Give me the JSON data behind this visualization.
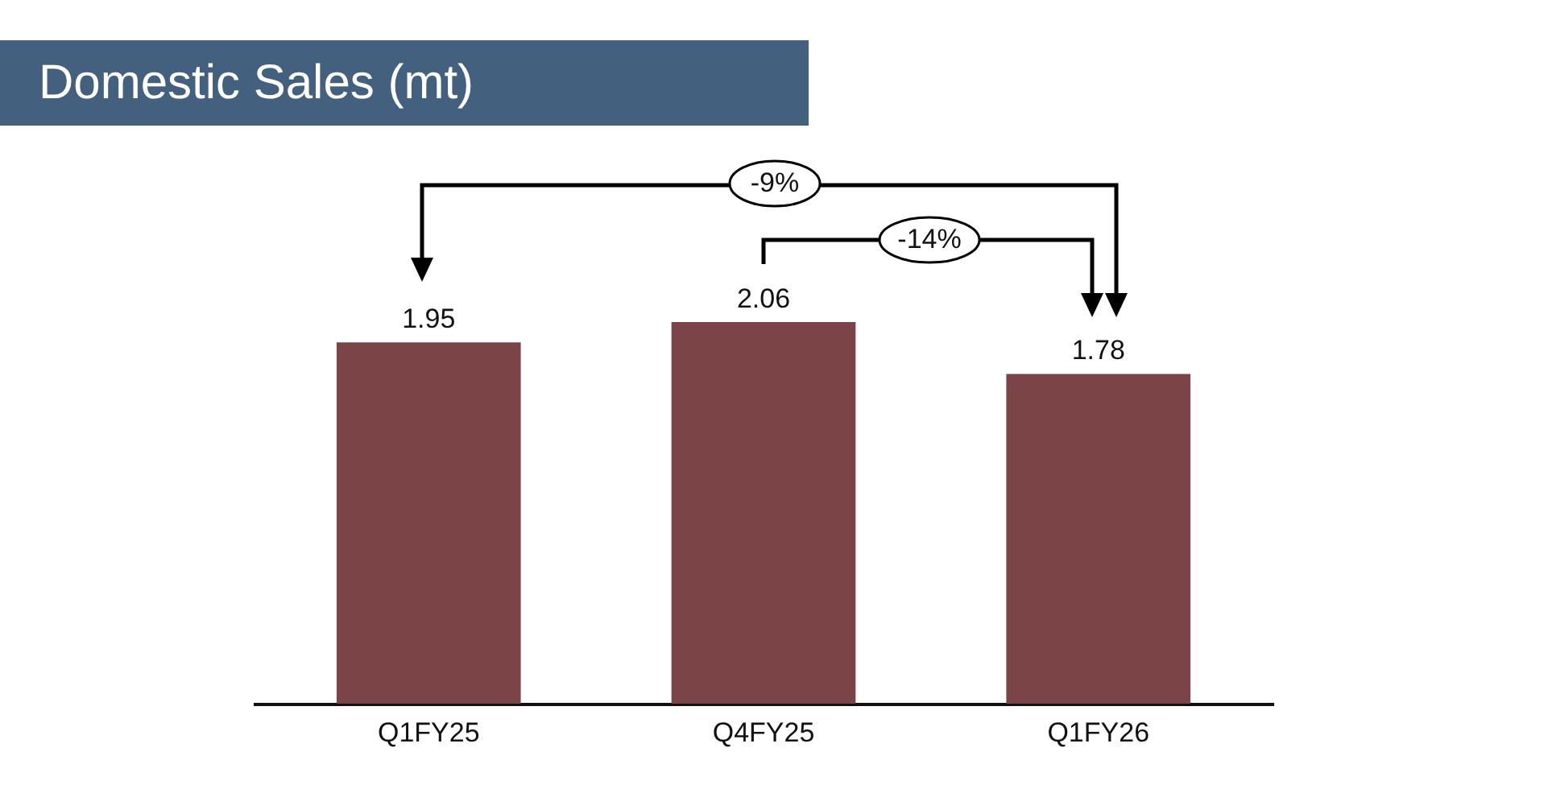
{
  "chart_data": {
    "type": "bar",
    "title": "Domestic Sales (mt)",
    "categories": [
      "Q1FY25",
      "Q4FY25",
      "Q1FY26"
    ],
    "values": [
      1.95,
      2.06,
      1.78
    ],
    "color": "#7b4548",
    "data_labels": true,
    "annotations": [
      "-9%",
      "-14%"
    ]
  }
}
